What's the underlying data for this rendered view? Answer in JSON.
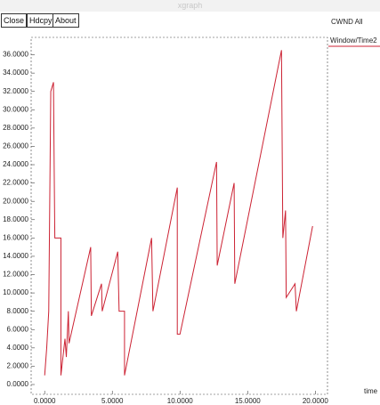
{
  "window": {
    "title": "xgraph",
    "buttons": [
      "Close",
      "Hdcpy",
      "About"
    ]
  },
  "chart_data": {
    "type": "line",
    "title": "CWND All",
    "x_label": "time",
    "x": [
      0,
      0.15,
      0.3,
      0.45,
      0.65,
      0.7,
      0.75,
      1.2,
      1.2,
      1.5,
      1.6,
      1.75,
      1.8,
      3.4,
      3.45,
      4.2,
      4.25,
      5.4,
      5.5,
      5.9,
      5.9,
      7.9,
      8.0,
      9.8,
      9.8,
      10.0,
      12.7,
      12.75,
      14.0,
      14.05,
      17.5,
      17.6,
      17.8,
      17.85,
      18.5,
      18.6,
      19.8
    ],
    "series": [
      {
        "name": "Window/Time2",
        "color": "#cc2233",
        "values": [
          1,
          4,
          8,
          32,
          33,
          24,
          16,
          16,
          1,
          5,
          3,
          8,
          4.5,
          15,
          7.5,
          11,
          8,
          14.5,
          8,
          8,
          1,
          16,
          8,
          21.5,
          5.5,
          5.5,
          24.3,
          13,
          22,
          11,
          36.5,
          16,
          19,
          9.5,
          11,
          8,
          17.3
        ]
      }
    ],
    "xlim": [
      -1,
      20.9
    ],
    "ylim": [
      -1.07,
      37.9
    ],
    "xticks": [
      {
        "value": 0,
        "label": "0.0000"
      },
      {
        "value": 5,
        "label": "5.0000"
      },
      {
        "value": 10,
        "label": "10.0000"
      },
      {
        "value": 15,
        "label": "15.0000"
      },
      {
        "value": 20,
        "label": "20.0000"
      }
    ],
    "yticks": [
      {
        "value": 0,
        "label": "0.0000"
      },
      {
        "value": 2,
        "label": "2.0000"
      },
      {
        "value": 4,
        "label": "4.0000"
      },
      {
        "value": 6,
        "label": "6.0000"
      },
      {
        "value": 8,
        "label": "8.0000"
      },
      {
        "value": 10,
        "label": "10.0000"
      },
      {
        "value": 12,
        "label": "12.0000"
      },
      {
        "value": 14,
        "label": "14.0000"
      },
      {
        "value": 16,
        "label": "16.0000"
      },
      {
        "value": 18,
        "label": "18.0000"
      },
      {
        "value": 20,
        "label": "20.0000"
      },
      {
        "value": 22,
        "label": "22.0000"
      },
      {
        "value": 24,
        "label": "24.0000"
      },
      {
        "value": 26,
        "label": "26.0000"
      },
      {
        "value": 28,
        "label": "28.0000"
      },
      {
        "value": 30,
        "label": "30.0000"
      },
      {
        "value": 32,
        "label": "32.0000"
      },
      {
        "value": 34,
        "label": "34.0000"
      },
      {
        "value": 36,
        "label": "36.0000"
      }
    ],
    "grid": false
  }
}
